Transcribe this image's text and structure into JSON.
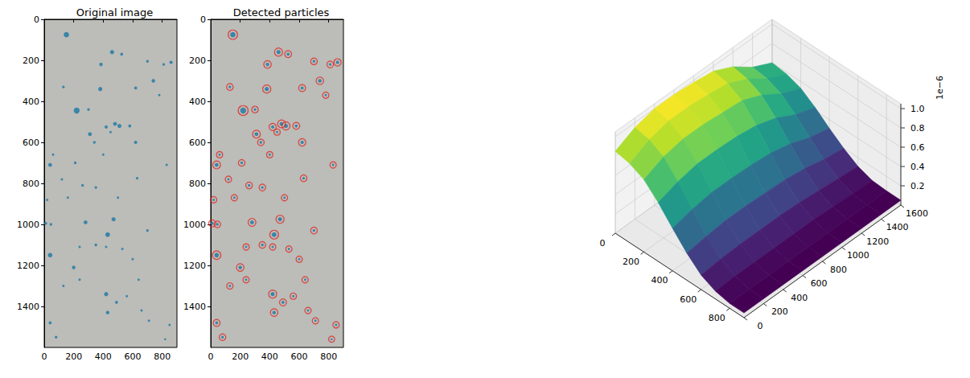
{
  "chart_data": [
    {
      "type": "scatter",
      "title": "Original image",
      "x": [
        150,
        460,
        525,
        700,
        860,
        385,
        810,
        130,
        380,
        740,
        620,
        780,
        220,
        300,
        420,
        480,
        510,
        580,
        310,
        450,
        340,
        620,
        60,
        40,
        210,
        400,
        830,
        120,
        260,
        350,
        630,
        160,
        500,
        20,
        10,
        45,
        280,
        470,
        700,
        430,
        350,
        200,
        420,
        530,
        240,
        40,
        600,
        240,
        130,
        420,
        490,
        560,
        640,
        40,
        710,
        850,
        430,
        660,
        80,
        820
      ],
      "values": [
        75,
        160,
        170,
        205,
        210,
        220,
        220,
        330,
        340,
        300,
        335,
        370,
        445,
        440,
        525,
        510,
        520,
        520,
        560,
        550,
        600,
        600,
        660,
        710,
        700,
        660,
        710,
        780,
        810,
        820,
        775,
        870,
        870,
        880,
        995,
        1000,
        990,
        975,
        1030,
        1050,
        1100,
        1210,
        1110,
        1120,
        1110,
        1150,
        1170,
        1270,
        1300,
        1340,
        1380,
        1350,
        1270,
        1480,
        1470,
        1490,
        1430,
        1420,
        1550,
        1560
      ],
      "sizes": [
        18,
        14,
        10,
        9,
        11,
        12,
        9,
        9,
        14,
        12,
        10,
        8,
        20,
        9,
        11,
        13,
        14,
        10,
        13,
        8,
        9,
        11,
        8,
        13,
        9,
        8,
        8,
        8,
        9,
        9,
        9,
        8,
        8,
        8,
        10,
        9,
        13,
        14,
        9,
        16,
        9,
        12,
        8,
        8,
        8,
        15,
        8,
        8,
        8,
        14,
        10,
        8,
        8,
        10,
        8,
        8,
        12,
        8,
        9,
        7
      ],
      "color": "#2b7ea6",
      "marker": "circle",
      "xlim": [
        0,
        900
      ],
      "ylim": [
        1600,
        0
      ],
      "xticks": [
        0,
        200,
        400,
        600,
        800
      ],
      "yticks": [
        0,
        200,
        400,
        600,
        800,
        1000,
        1200,
        1400
      ],
      "grid": false
    },
    {
      "type": "scatter",
      "title": "Detected particles",
      "x": [
        150,
        460,
        525,
        700,
        860,
        385,
        810,
        130,
        380,
        740,
        620,
        780,
        220,
        300,
        420,
        480,
        510,
        580,
        310,
        450,
        340,
        620,
        60,
        40,
        210,
        400,
        830,
        120,
        260,
        350,
        630,
        160,
        500,
        20,
        10,
        45,
        280,
        470,
        700,
        430,
        350,
        200,
        420,
        530,
        240,
        40,
        600,
        240,
        130,
        420,
        490,
        560,
        640,
        40,
        710,
        850,
        430,
        660,
        80,
        820
      ],
      "sizes": [
        18,
        14,
        10,
        9,
        11,
        12,
        9,
        9,
        14,
        12,
        10,
        8,
        20,
        9,
        11,
        13,
        14,
        10,
        13,
        8,
        9,
        11,
        8,
        13,
        9,
        8,
        8,
        8,
        9,
        9,
        9,
        8,
        8,
        8,
        10,
        9,
        13,
        14,
        9,
        16,
        9,
        12,
        8,
        8,
        8,
        15,
        8,
        8,
        8,
        14,
        10,
        8,
        8,
        10,
        8,
        8,
        12,
        8,
        9,
        7
      ],
      "series": [
        {
          "color": "#2b7ea6",
          "marker": "circle",
          "values": [
            75,
            160,
            170,
            205,
            210,
            220,
            220,
            330,
            340,
            300,
            335,
            370,
            445,
            440,
            525,
            510,
            520,
            520,
            560,
            550,
            600,
            600,
            660,
            710,
            700,
            660,
            710,
            780,
            810,
            820,
            775,
            870,
            870,
            880,
            995,
            1000,
            990,
            975,
            1030,
            1050,
            1100,
            1210,
            1110,
            1120,
            1110,
            1150,
            1170,
            1270,
            1300,
            1340,
            1380,
            1350,
            1270,
            1480,
            1470,
            1490,
            1430,
            1420,
            1550,
            1560
          ]
        },
        {
          "color": "#e3201c",
          "marker": "ring",
          "values": [
            75,
            160,
            170,
            205,
            210,
            220,
            220,
            330,
            340,
            300,
            335,
            370,
            445,
            440,
            525,
            510,
            520,
            520,
            560,
            550,
            600,
            600,
            660,
            710,
            700,
            660,
            710,
            780,
            810,
            820,
            775,
            870,
            870,
            880,
            995,
            1000,
            990,
            975,
            1030,
            1050,
            1100,
            1210,
            1110,
            1120,
            1110,
            1150,
            1170,
            1270,
            1300,
            1340,
            1380,
            1350,
            1270,
            1480,
            1470,
            1490,
            1430,
            1420,
            1550,
            1560
          ]
        }
      ],
      "xlim": [
        0,
        900
      ],
      "ylim": [
        1600,
        0
      ],
      "xticks": [
        0,
        200,
        400,
        600,
        800
      ],
      "yticks": [
        0,
        200,
        400,
        600,
        800,
        1000,
        1200,
        1400
      ],
      "grid": false
    },
    {
      "type": "surface",
      "x": [
        0,
        100,
        200,
        300,
        400,
        500,
        600,
        700,
        800,
        900
      ],
      "y": [
        0,
        200,
        400,
        600,
        800,
        1000,
        1200,
        1400,
        1600
      ],
      "z": [
        [
          0.85,
          0.95,
          1.0,
          1.0,
          0.98,
          0.95,
          0.85,
          0.7,
          0.6
        ],
        [
          0.82,
          0.92,
          0.97,
          0.97,
          0.95,
          0.92,
          0.82,
          0.68,
          0.58
        ],
        [
          0.75,
          0.84,
          0.88,
          0.88,
          0.86,
          0.84,
          0.75,
          0.62,
          0.53
        ],
        [
          0.61,
          0.68,
          0.72,
          0.72,
          0.71,
          0.68,
          0.61,
          0.5,
          0.43
        ],
        [
          0.44,
          0.49,
          0.52,
          0.52,
          0.51,
          0.49,
          0.44,
          0.36,
          0.31
        ],
        [
          0.28,
          0.31,
          0.33,
          0.33,
          0.32,
          0.31,
          0.28,
          0.23,
          0.2
        ],
        [
          0.15,
          0.17,
          0.18,
          0.18,
          0.18,
          0.17,
          0.15,
          0.13,
          0.11
        ],
        [
          0.08,
          0.09,
          0.09,
          0.09,
          0.09,
          0.09,
          0.08,
          0.07,
          0.06
        ],
        [
          0.05,
          0.05,
          0.05,
          0.05,
          0.05,
          0.05,
          0.05,
          0.05,
          0.05
        ],
        [
          0.05,
          0.05,
          0.05,
          0.05,
          0.05,
          0.05,
          0.05,
          0.05,
          0.05
        ]
      ],
      "xlim": [
        0,
        900
      ],
      "ylim": [
        0,
        1600
      ],
      "zlim": [
        0,
        1.05
      ],
      "xticks": [
        0,
        200,
        400,
        600,
        800
      ],
      "yticks": [
        0,
        200,
        400,
        600,
        800,
        1000,
        1200,
        1400,
        1600
      ],
      "zticks": [
        0.2,
        0.4,
        0.6,
        0.8,
        {
          "value": 1,
          "label": "1.0"
        }
      ],
      "zlabel": "1e−6",
      "grid": true
    }
  ]
}
